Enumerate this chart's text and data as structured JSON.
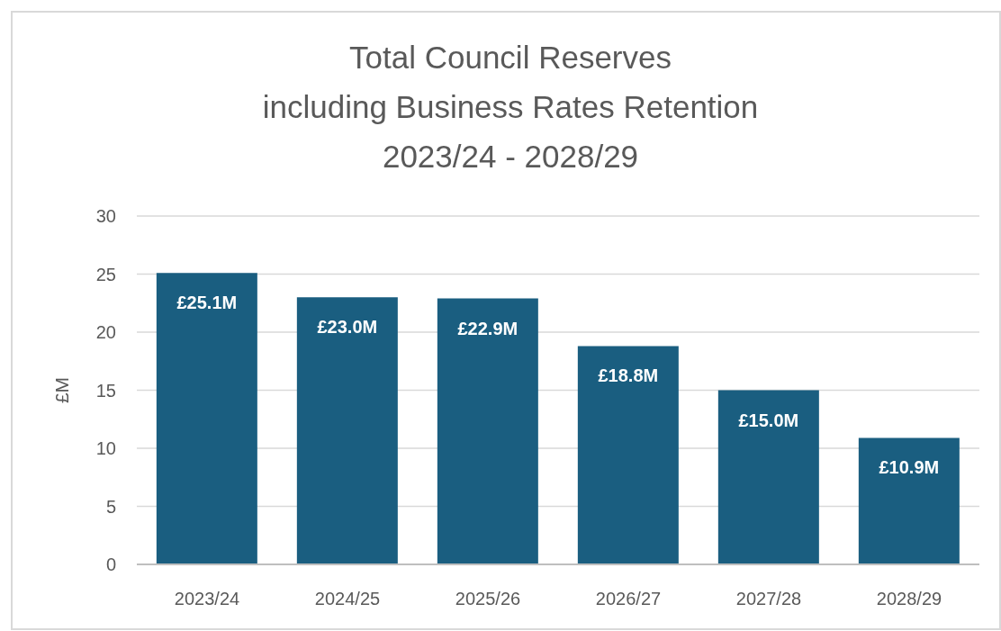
{
  "chart_data": {
    "type": "bar",
    "title": "Total Council Reserves\nincluding Business Rates Retention\n2023/24 - 2028/29",
    "ylabel": "£M",
    "categories": [
      "2023/24",
      "2024/25",
      "2025/26",
      "2026/27",
      "2027/28",
      "2028/29"
    ],
    "values": [
      25.1,
      23.0,
      22.9,
      18.8,
      15.0,
      10.9
    ],
    "color": "#1a5e80",
    "value_labels": [
      "£25.1M",
      "£23.0M",
      "£22.9M",
      "£18.8M",
      "£15.0M",
      "£10.9M"
    ],
    "ylim": [
      0,
      30
    ],
    "yticks": [
      0,
      5,
      10,
      15,
      20,
      25,
      30
    ],
    "grid": "y"
  }
}
